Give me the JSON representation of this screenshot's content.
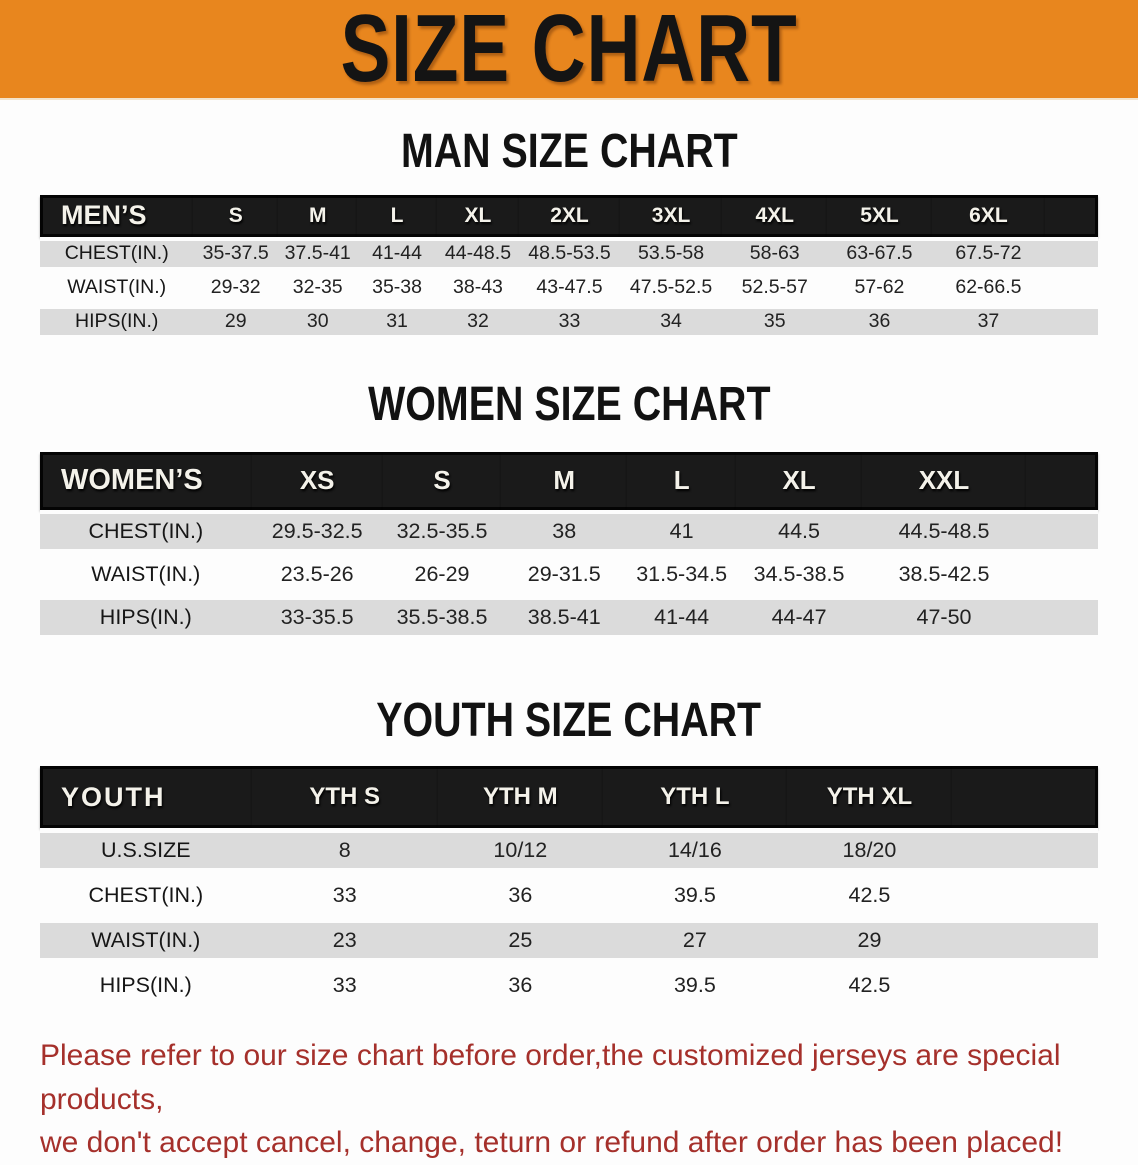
{
  "banner": {
    "title": "SIZE CHART"
  },
  "colors": {
    "banner_bg": "#e8861e",
    "header_band_bg": "#1a1a1a",
    "row_stripe": "#dbdbdb",
    "disclaimer_text": "#a5302b"
  },
  "sections": [
    {
      "heading": "MAN SIZE CHART",
      "table_label": "MEN’S",
      "columns": [
        "S",
        "M",
        "L",
        "XL",
        "2XL",
        "3XL",
        "4XL",
        "5XL",
        "6XL"
      ],
      "rows": [
        {
          "label": "CHEST(IN.)",
          "values": [
            "35-37.5",
            "37.5-41",
            "41-44",
            "44-48.5",
            "48.5-53.5",
            "53.5-58",
            "58-63",
            "63-67.5",
            "67.5-72"
          ]
        },
        {
          "label": "WAIST(IN.)",
          "values": [
            "29-32",
            "32-35",
            "35-38",
            "38-43",
            "43-47.5",
            "47.5-52.5",
            "52.5-57",
            "57-62",
            "62-66.5"
          ]
        },
        {
          "label": "HIPS(IN.)",
          "values": [
            "29",
            "30",
            "31",
            "32",
            "33",
            "34",
            "35",
            "36",
            "37"
          ]
        }
      ]
    },
    {
      "heading": "WOMEN SIZE CHART",
      "table_label": "WOMEN’S",
      "columns": [
        "XS",
        "S",
        "M",
        "L",
        "XL",
        "XXL"
      ],
      "rows": [
        {
          "label": "CHEST(IN.)",
          "values": [
            "29.5-32.5",
            "32.5-35.5",
            "38",
            "41",
            "44.5",
            "44.5-48.5"
          ]
        },
        {
          "label": "WAIST(IN.)",
          "values": [
            "23.5-26",
            "26-29",
            "29-31.5",
            "31.5-34.5",
            "34.5-38.5",
            "38.5-42.5"
          ]
        },
        {
          "label": "HIPS(IN.)",
          "values": [
            "33-35.5",
            "35.5-38.5",
            "38.5-41",
            "41-44",
            "44-47",
            "47-50"
          ]
        }
      ]
    },
    {
      "heading": "YOUTH SIZE CHART",
      "table_label": "YOUTH",
      "columns": [
        "YTH S",
        "YTH M",
        "YTH L",
        "YTH XL"
      ],
      "rows": [
        {
          "label": "U.S.SIZE",
          "values": [
            "8",
            "10/12",
            "14/16",
            "18/20"
          ]
        },
        {
          "label": "CHEST(IN.)",
          "values": [
            "33",
            "36",
            "39.5",
            "42.5"
          ]
        },
        {
          "label": "WAIST(IN.)",
          "values": [
            "23",
            "25",
            "27",
            "29"
          ]
        },
        {
          "label": "HIPS(IN.)",
          "values": [
            "33",
            "36",
            "39.5",
            "42.5"
          ]
        }
      ]
    }
  ],
  "disclaimer": {
    "line1": "Please refer to our size chart before order,the customized jerseys are special products,",
    "line2": "we don't accept cancel, change, teturn or refund after order has been placed!"
  }
}
